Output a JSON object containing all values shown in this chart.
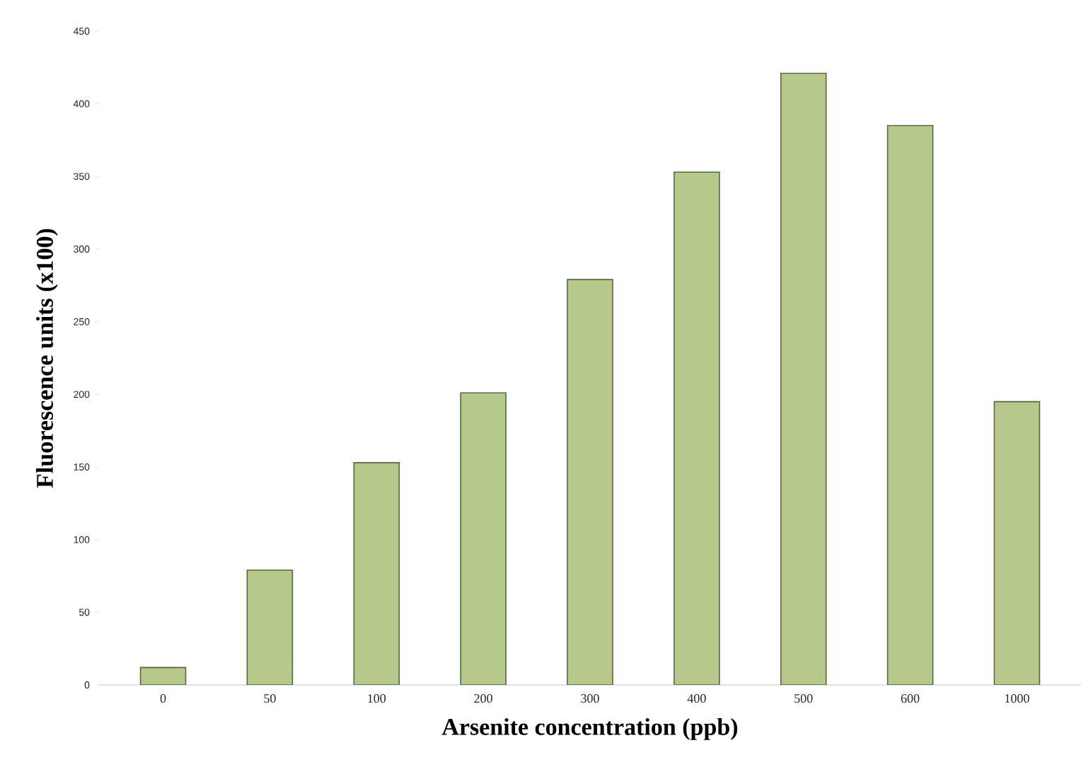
{
  "chart_data": {
    "type": "bar",
    "xlabel": "Arsenite concentration (ppb)",
    "ylabel": "Fluorescence units (x100)",
    "categories": [
      "0",
      "50",
      "100",
      "200",
      "300",
      "400",
      "500",
      "600",
      "1000"
    ],
    "values": [
      12,
      79,
      153,
      201,
      279,
      353,
      421,
      385,
      195
    ],
    "color": "#b5c98a",
    "ylim": [
      0,
      450
    ],
    "yticks": [
      0,
      50,
      100,
      150,
      200,
      250,
      300,
      350,
      400,
      450
    ],
    "grid": false
  }
}
